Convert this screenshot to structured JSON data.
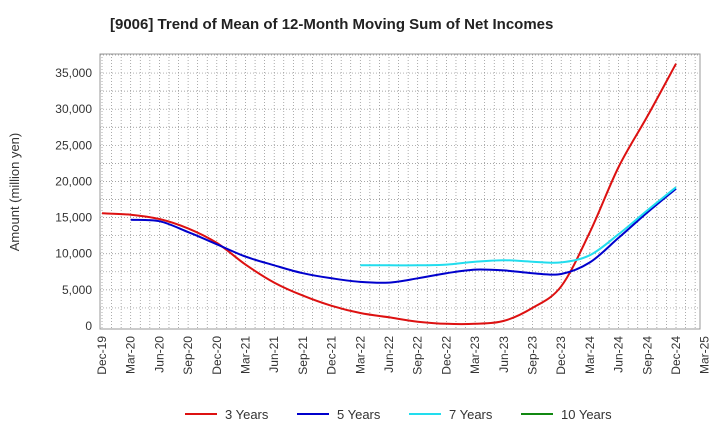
{
  "chart_data": {
    "type": "line",
    "title": "[9006]  Trend of Mean of 12-Month Moving Sum of Net Incomes",
    "xlabel": "",
    "ylabel": "Amount (million yen)",
    "ylim": [
      0,
      37500
    ],
    "yticks": [
      0,
      5000,
      10000,
      15000,
      20000,
      25000,
      30000,
      35000
    ],
    "ytick_labels": [
      "0",
      "5,000",
      "10,000",
      "15,000",
      "20,000",
      "25,000",
      "30,000",
      "35,000"
    ],
    "x_categories": [
      "Dec-19",
      "Mar-20",
      "Jun-20",
      "Sep-20",
      "Dec-20",
      "Mar-21",
      "Jun-21",
      "Sep-21",
      "Dec-21",
      "Mar-22",
      "Jun-22",
      "Sep-22",
      "Dec-22",
      "Mar-23",
      "Jun-23",
      "Sep-23",
      "Dec-23",
      "Mar-24",
      "Jun-24",
      "Sep-24",
      "Dec-24",
      "Mar-25"
    ],
    "grid": true,
    "legend_position": "bottom",
    "series": [
      {
        "name": "3 Years",
        "color": "#dd1111",
        "points": [
          [
            0,
            15600
          ],
          [
            1,
            15400
          ],
          [
            2,
            14800
          ],
          [
            3,
            13500
          ],
          [
            4,
            11500
          ],
          [
            5,
            8500
          ],
          [
            6,
            6000
          ],
          [
            7,
            4200
          ],
          [
            8,
            2800
          ],
          [
            9,
            1800
          ],
          [
            10,
            1200
          ],
          [
            11,
            600
          ],
          [
            12,
            300
          ],
          [
            13,
            300
          ],
          [
            14,
            700
          ],
          [
            15,
            2500
          ],
          [
            16,
            5500
          ],
          [
            17,
            13000
          ],
          [
            18,
            22000
          ],
          [
            19,
            29000
          ],
          [
            20,
            36300
          ]
        ]
      },
      {
        "name": "5 Years",
        "color": "#0000cc",
        "points": [
          [
            1,
            14700
          ],
          [
            2,
            14500
          ],
          [
            3,
            13000
          ],
          [
            4,
            11300
          ],
          [
            5,
            9600
          ],
          [
            6,
            8400
          ],
          [
            7,
            7300
          ],
          [
            8,
            6600
          ],
          [
            9,
            6100
          ],
          [
            10,
            6000
          ],
          [
            11,
            6600
          ],
          [
            12,
            7300
          ],
          [
            13,
            7800
          ],
          [
            14,
            7700
          ],
          [
            15,
            7300
          ],
          [
            16,
            7200
          ],
          [
            17,
            8800
          ],
          [
            18,
            12200
          ],
          [
            19,
            15700
          ],
          [
            20,
            19000
          ]
        ]
      },
      {
        "name": "7 Years",
        "color": "#22ddee",
        "points": [
          [
            9,
            8400
          ],
          [
            10,
            8400
          ],
          [
            11,
            8400
          ],
          [
            12,
            8500
          ],
          [
            13,
            8900
          ],
          [
            14,
            9100
          ],
          [
            15,
            8900
          ],
          [
            16,
            8800
          ],
          [
            17,
            9800
          ],
          [
            18,
            12700
          ],
          [
            19,
            16000
          ],
          [
            20,
            19200
          ]
        ]
      },
      {
        "name": "10 Years",
        "color": "#118811",
        "points": []
      }
    ]
  }
}
